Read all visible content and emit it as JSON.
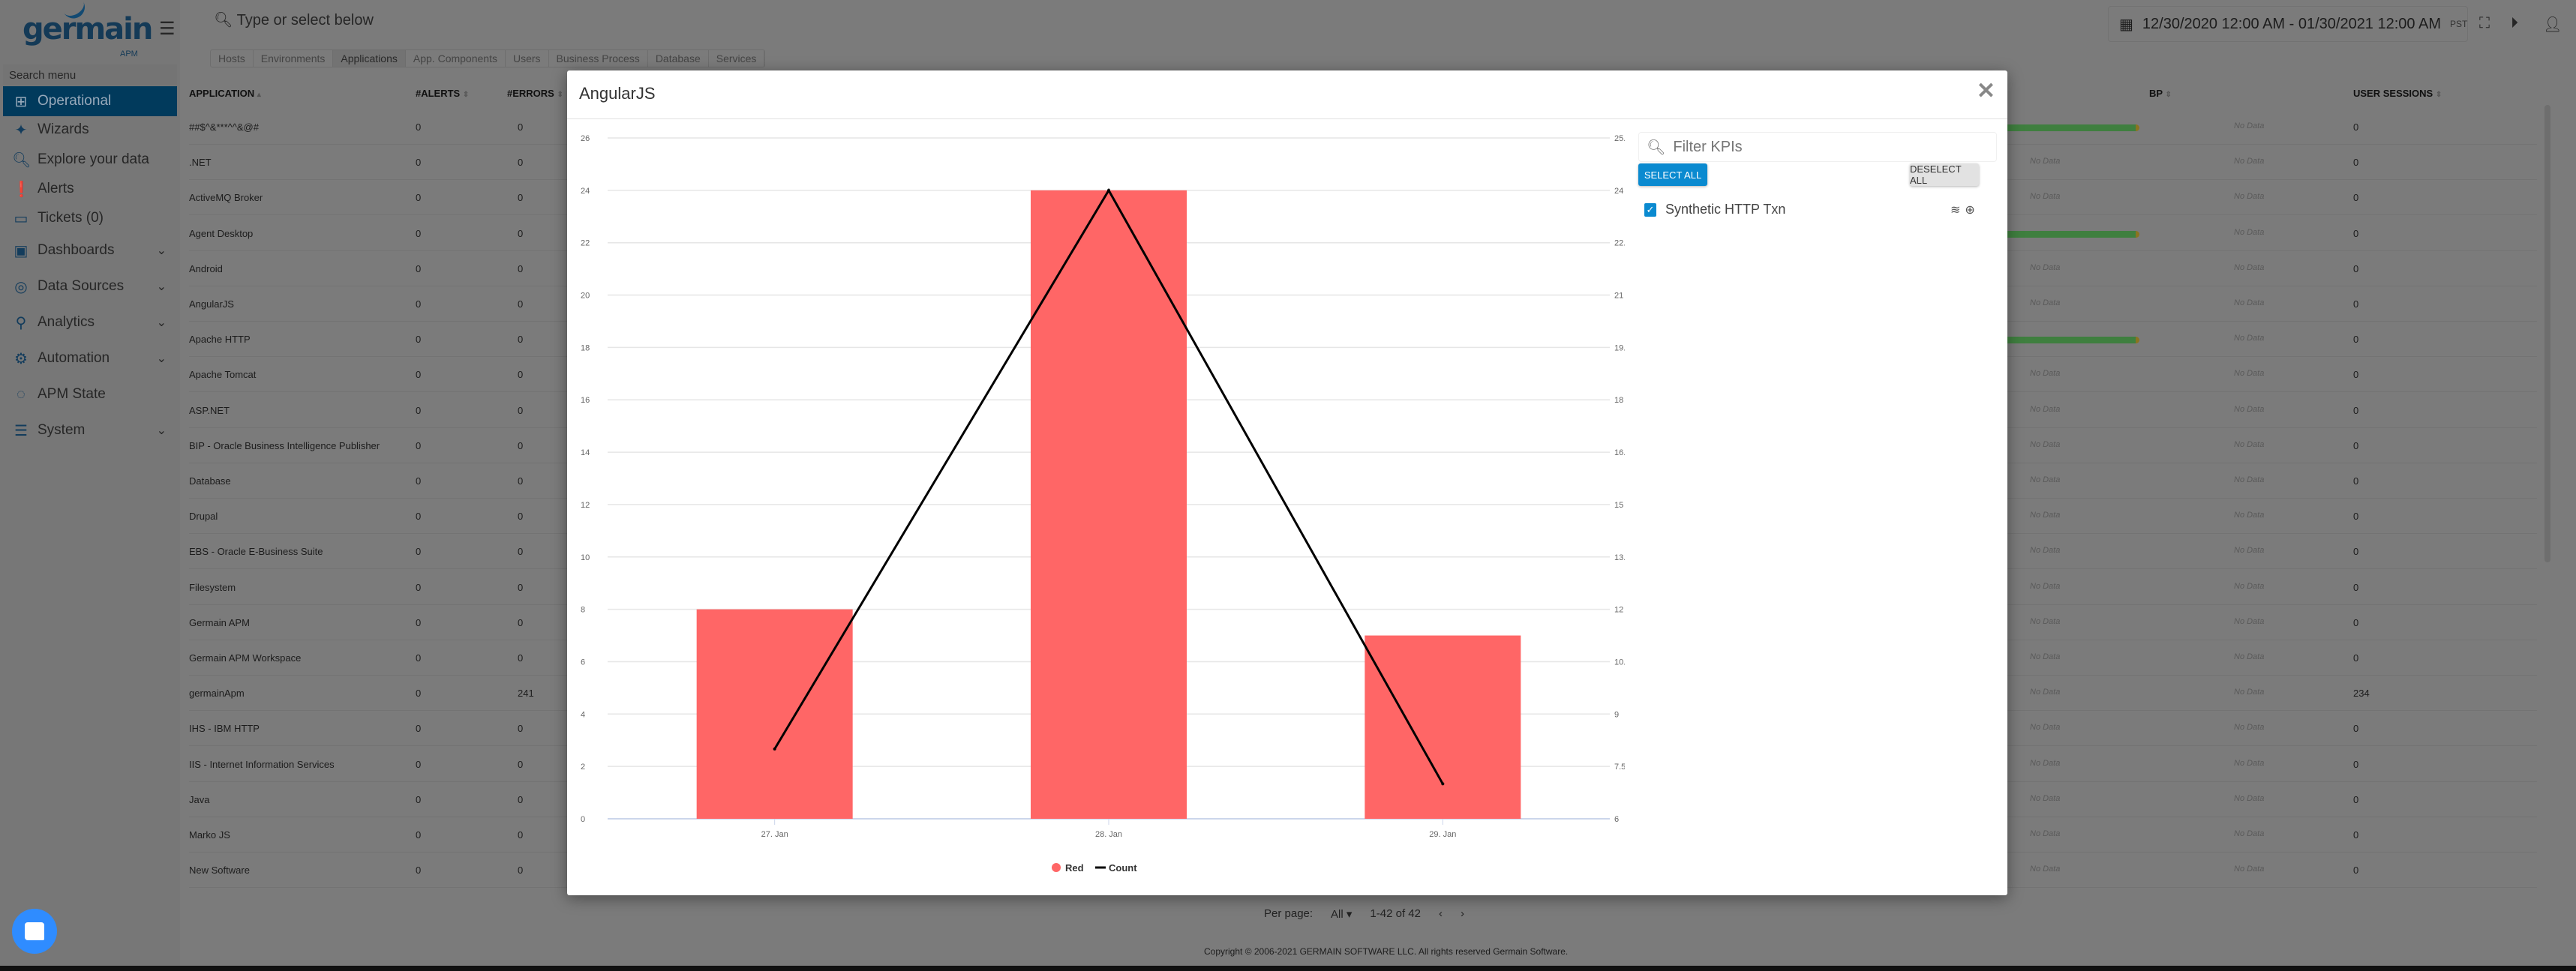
{
  "app": {
    "logo_text": "germain",
    "logo_sub": "APM"
  },
  "sidebar": {
    "search_placeholder": "Search menu",
    "items": [
      {
        "label": "Operational",
        "icon": "sitemap-icon",
        "active": true
      },
      {
        "label": "Wizards",
        "icon": "magic-wand-icon"
      },
      {
        "label": "Explore your data",
        "icon": "search-icon"
      },
      {
        "label": "Alerts",
        "icon": "alert-icon"
      },
      {
        "label": "Tickets (0)",
        "icon": "ticket-icon"
      },
      {
        "label": "Dashboards",
        "icon": "dashboard-icon",
        "expandable": true
      },
      {
        "label": "Data Sources",
        "icon": "data-sources-icon",
        "expandable": true
      },
      {
        "label": "Analytics",
        "icon": "analytics-icon",
        "expandable": true
      },
      {
        "label": "Automation",
        "icon": "gear-icon",
        "expandable": true
      },
      {
        "label": "APM State",
        "icon": "state-icon"
      },
      {
        "label": "System",
        "icon": "sliders-icon",
        "expandable": true
      }
    ]
  },
  "topbar": {
    "search_placeholder": "Type or select below",
    "date_range": "12/30/2020 12:00 AM - 01/30/2021 12:00 AM",
    "timezone": "PST"
  },
  "tabs": [
    "Hosts",
    "Environments",
    "Applications",
    "App. Components",
    "Users",
    "Business Process",
    "Database",
    "Services"
  ],
  "active_tab": "Applications",
  "table": {
    "columns": {
      "application": "APPLICATION",
      "alerts": "#ALERTS",
      "errors": "#ERRORS",
      "bp": "BP",
      "user_sessions": "USER SESSIONS"
    },
    "no_data": "No Data",
    "rows": [
      {
        "name": "##$^&***^^&@#",
        "alerts": "0",
        "errors": "0",
        "health_bar": true,
        "sessions": "0"
      },
      {
        "name": ".NET",
        "alerts": "0",
        "errors": "0",
        "health_bar": false,
        "sessions": "0"
      },
      {
        "name": "ActiveMQ Broker",
        "alerts": "0",
        "errors": "0",
        "health_bar": false,
        "sessions": "0"
      },
      {
        "name": "Agent Desktop",
        "alerts": "0",
        "errors": "0",
        "health_bar": true,
        "sessions": "0"
      },
      {
        "name": "Android",
        "alerts": "0",
        "errors": "0",
        "health_bar": false,
        "sessions": "0"
      },
      {
        "name": "AngularJS",
        "alerts": "0",
        "errors": "0",
        "health_bar": false,
        "sessions": "0"
      },
      {
        "name": "Apache HTTP",
        "alerts": "0",
        "errors": "0",
        "health_bar": true,
        "sessions": "0"
      },
      {
        "name": "Apache Tomcat",
        "alerts": "0",
        "errors": "0",
        "health_bar": false,
        "sessions": "0"
      },
      {
        "name": "ASP.NET",
        "alerts": "0",
        "errors": "0",
        "health_bar": false,
        "sessions": "0"
      },
      {
        "name": "BIP - Oracle Business Intelligence Publisher",
        "alerts": "0",
        "errors": "0",
        "health_bar": false,
        "sessions": "0"
      },
      {
        "name": "Database",
        "alerts": "0",
        "errors": "0",
        "health_bar": false,
        "sessions": "0"
      },
      {
        "name": "Drupal",
        "alerts": "0",
        "errors": "0",
        "health_bar": false,
        "sessions": "0"
      },
      {
        "name": "EBS - Oracle E-Business Suite",
        "alerts": "0",
        "errors": "0",
        "health_bar": false,
        "sessions": "0"
      },
      {
        "name": "Filesystem",
        "alerts": "0",
        "errors": "0",
        "health_bar": false,
        "sessions": "0"
      },
      {
        "name": "Germain APM",
        "alerts": "0",
        "errors": "0",
        "health_bar": false,
        "sessions": "0"
      },
      {
        "name": "Germain APM Workspace",
        "alerts": "0",
        "errors": "0",
        "health_bar": false,
        "sessions": "0"
      },
      {
        "name": "germainApm",
        "alerts": "0",
        "errors": "241",
        "health_bar": false,
        "sessions": "234"
      },
      {
        "name": "IHS - IBM HTTP",
        "alerts": "0",
        "errors": "0",
        "health_bar": false,
        "sessions": "0"
      },
      {
        "name": "IIS - Internet Information Services",
        "alerts": "0",
        "errors": "0",
        "health_bar": false,
        "sessions": "0"
      },
      {
        "name": "Java",
        "alerts": "0",
        "errors": "0",
        "health_bar": false,
        "sessions": "0"
      },
      {
        "name": "Marko JS",
        "alerts": "0",
        "errors": "0",
        "health_bar": false,
        "sessions": "0"
      },
      {
        "name": "New Software",
        "alerts": "0",
        "errors": "0",
        "health_bar": false,
        "sessions": "0"
      }
    ]
  },
  "pager": {
    "per_page_label": "Per page:",
    "per_page_value": "All",
    "range": "1-42 of 42"
  },
  "footer": {
    "copyright": "Copyright © 2006-2021 GERMAIN SOFTWARE LLC. All rights reserved Germain Software."
  },
  "modal": {
    "title": "AngularJS",
    "kpi_panel": {
      "filter_placeholder": "Filter KPIs",
      "select_all": "SELECT ALL",
      "deselect_all": "DESELECT ALL",
      "items": [
        {
          "label": "Synthetic HTTP Txn",
          "checked": true
        }
      ]
    }
  },
  "colors": {
    "brand": "#025c91",
    "accent": "#0a8ad0",
    "bar": "#ff6666",
    "line": "#000000",
    "health": "#5ab75a"
  },
  "chart_data": {
    "type": "bar+line",
    "categories": [
      "27. Jan",
      "28. Jan",
      "29. Jan"
    ],
    "series": [
      {
        "name": "Red",
        "type": "bar",
        "axis": "left",
        "values": [
          8,
          24,
          7
        ]
      },
      {
        "name": "Count",
        "type": "line",
        "axis": "right",
        "values": [
          8,
          24,
          7
        ]
      }
    ],
    "y_left": {
      "range": [
        0,
        26
      ],
      "ticks": [
        0,
        2,
        4,
        6,
        8,
        10,
        12,
        14,
        16,
        18,
        20,
        22,
        24,
        26
      ]
    },
    "y_right": {
      "range": [
        6,
        25.5
      ],
      "ticks": [
        6,
        7.5,
        9,
        10.5,
        12,
        13.5,
        15,
        16.5,
        18,
        19.5,
        21,
        22.5,
        24,
        25.5
      ]
    },
    "grid": true,
    "legend": "bottom-center"
  }
}
